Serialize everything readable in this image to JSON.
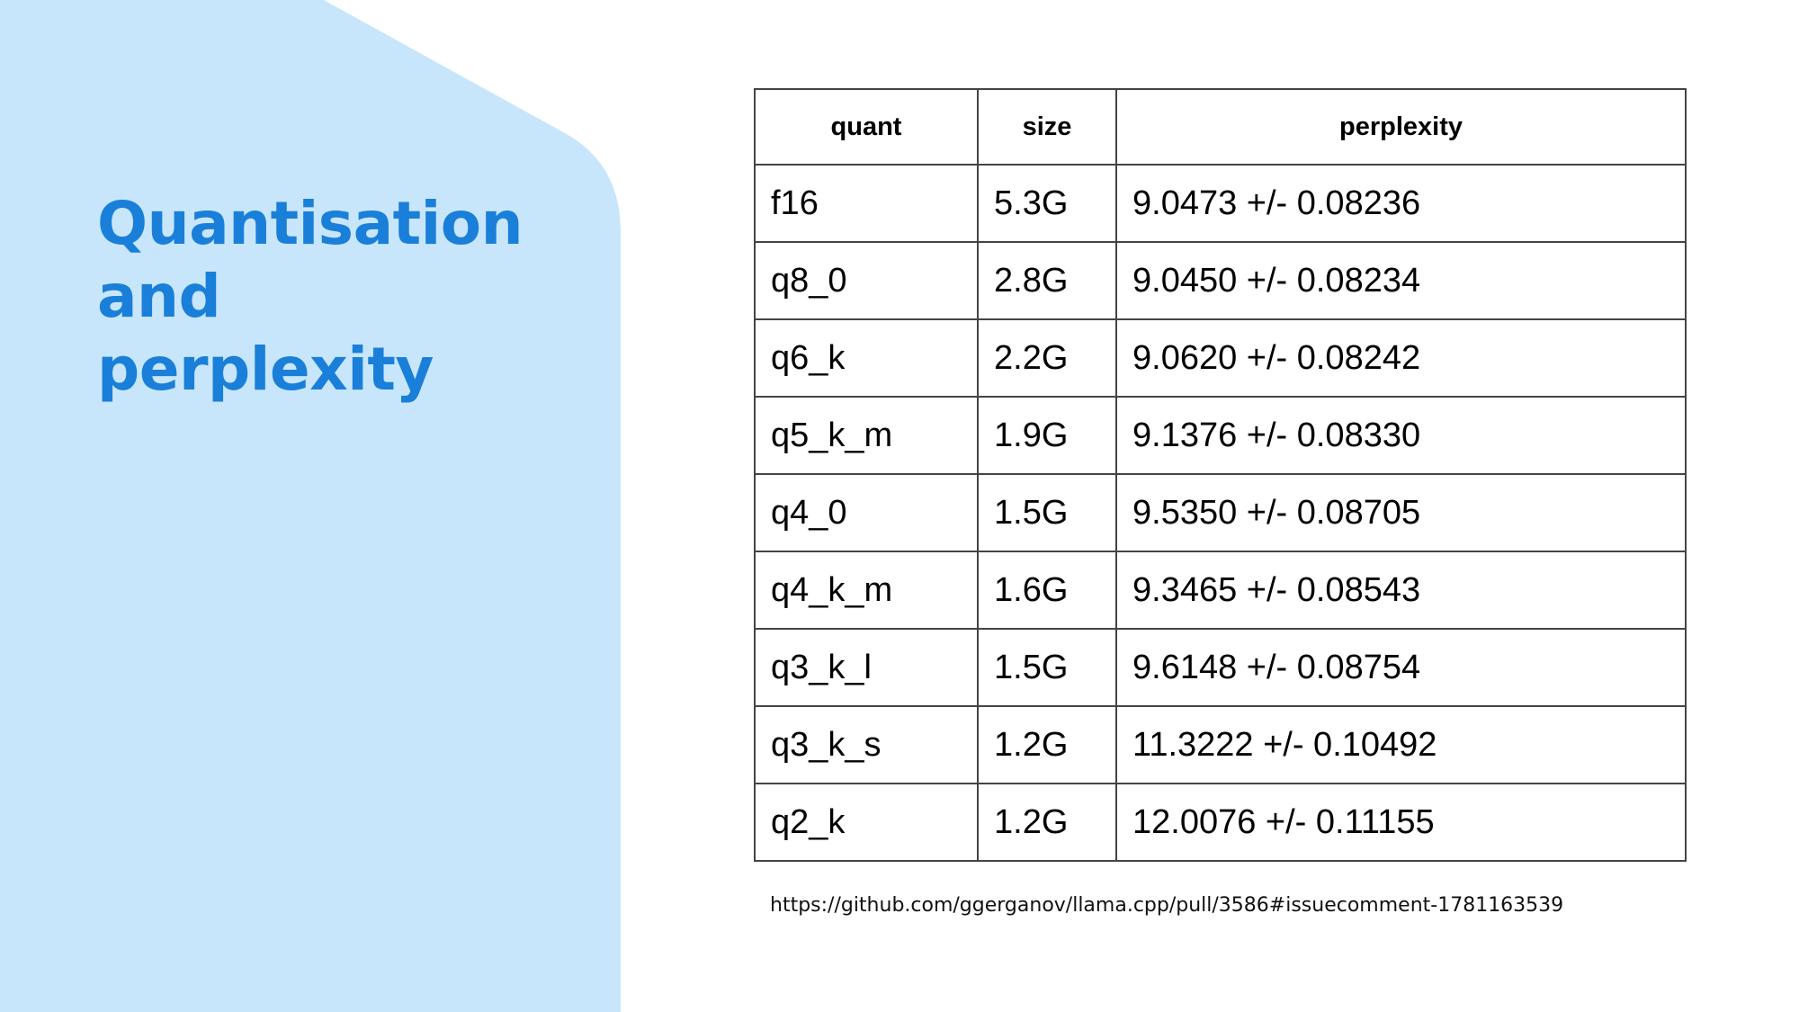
{
  "colors": {
    "side_panel": "#c8e6fb",
    "title": "#1a7fd9",
    "table_border": "#444444"
  },
  "title": {
    "line1": "Quantisation",
    "line2": "and",
    "line3": "perplexity"
  },
  "table": {
    "headers": [
      "quant",
      "size",
      "perplexity"
    ],
    "rows": [
      [
        "f16",
        "5.3G",
        "9.0473 +/- 0.08236"
      ],
      [
        "q8_0",
        "2.8G",
        "9.0450 +/- 0.08234"
      ],
      [
        "q6_k",
        "2.2G",
        "9.0620 +/- 0.08242"
      ],
      [
        "q5_k_m",
        "1.9G",
        "9.1376 +/- 0.08330"
      ],
      [
        "q4_0",
        "1.5G",
        "9.5350 +/- 0.08705"
      ],
      [
        "q4_k_m",
        "1.6G",
        "9.3465 +/- 0.08543"
      ],
      [
        "q3_k_l",
        "1.5G",
        "9.6148 +/- 0.08754"
      ],
      [
        "q3_k_s",
        "1.2G",
        "11.3222 +/- 0.10492"
      ],
      [
        "q2_k",
        "1.2G",
        "12.0076 +/- 0.11155"
      ]
    ]
  },
  "source": "https://github.com/ggerganov/llama.cpp/pull/3586#issuecomment-1781163539"
}
